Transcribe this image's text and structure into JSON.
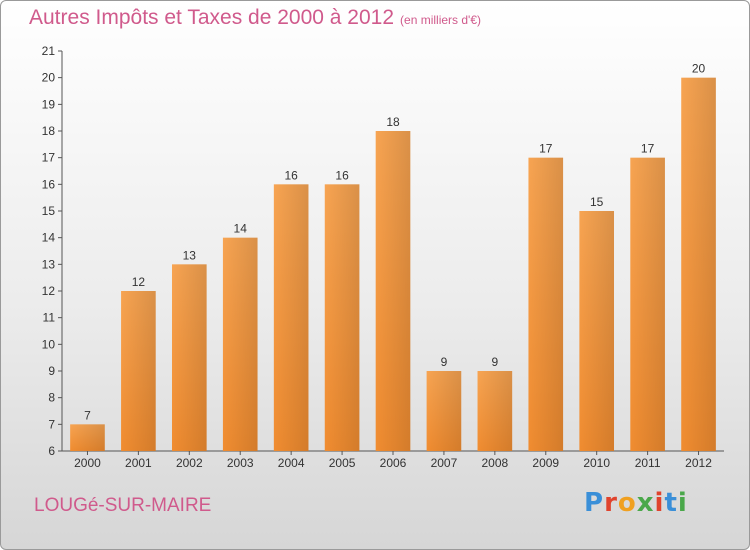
{
  "chart_data": {
    "type": "bar",
    "title": "Autres Impôts et Taxes de 2000 à 2012",
    "subtitle": "(en milliers d'€)",
    "xlabel": "",
    "ylabel": "",
    "categories": [
      "2000",
      "2001",
      "2002",
      "2003",
      "2004",
      "2005",
      "2006",
      "2007",
      "2008",
      "2009",
      "2010",
      "2011",
      "2012"
    ],
    "values": [
      7,
      12,
      13,
      14,
      16,
      16,
      18,
      9,
      9,
      17,
      15,
      17,
      20
    ],
    "ylim": [
      6,
      21
    ],
    "yticks": [
      6,
      7,
      8,
      9,
      10,
      11,
      12,
      13,
      14,
      15,
      16,
      17,
      18,
      19,
      20,
      21
    ],
    "bar_color": "#f08c30",
    "grid": false
  },
  "location": "LOUGé-SUR-MAIRE",
  "brand": [
    "P",
    "r",
    "o",
    "x",
    "i",
    "t",
    "i"
  ]
}
